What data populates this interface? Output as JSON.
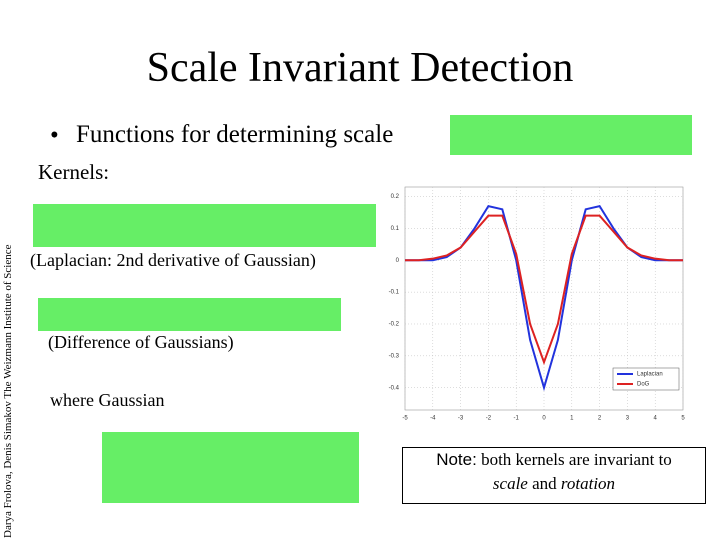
{
  "slide": {
    "title": "Scale Invariant Detection",
    "bullet": "Functions for determining scale",
    "kernels": "Kernels:",
    "laplacian_caption": "(Laplacian: 2nd derivative of Gaussian)",
    "dog_caption": "(Difference of Gaussians)",
    "gaussian_caption": "where Gaussian",
    "side_credit": "Darya Frolova, Denis Simakov The Weizmann Institute of Science",
    "note_label": "Note:",
    "note_text_1": "both kernels are invariant to",
    "note_scale": "scale",
    "note_and": "and",
    "note_rotation": "rotation"
  },
  "chart_data": {
    "type": "line",
    "x": [
      -5,
      -4.5,
      -4,
      -3.5,
      -3,
      -2.5,
      -2,
      -1.5,
      -1,
      -0.5,
      0,
      0.5,
      1,
      1.5,
      2,
      2.5,
      3,
      3.5,
      4,
      4.5,
      5
    ],
    "series": [
      {
        "name": "Laplacian",
        "color": "#2233dd",
        "values": [
          0,
          0,
          0,
          0.01,
          0.04,
          0.1,
          0.17,
          0.16,
          0.0,
          -0.25,
          -0.4,
          -0.25,
          0.0,
          0.16,
          0.17,
          0.1,
          0.04,
          0.01,
          0,
          0,
          0
        ]
      },
      {
        "name": "DoG",
        "color": "#dd2222",
        "values": [
          0,
          0,
          0.005,
          0.015,
          0.04,
          0.09,
          0.14,
          0.14,
          0.02,
          -0.2,
          -0.32,
          -0.2,
          0.02,
          0.14,
          0.14,
          0.09,
          0.04,
          0.015,
          0.005,
          0,
          0
        ]
      }
    ],
    "xlim": [
      -5,
      5
    ],
    "ylim": [
      -0.47,
      0.23
    ],
    "xticks": [
      -5,
      -4,
      -3,
      -2,
      -1,
      0,
      1,
      2,
      3,
      4,
      5
    ],
    "yticks": [
      0.2,
      0.1,
      0,
      -0.1,
      -0.2,
      -0.3,
      -0.4
    ],
    "grid": true,
    "legend": "lower right"
  }
}
